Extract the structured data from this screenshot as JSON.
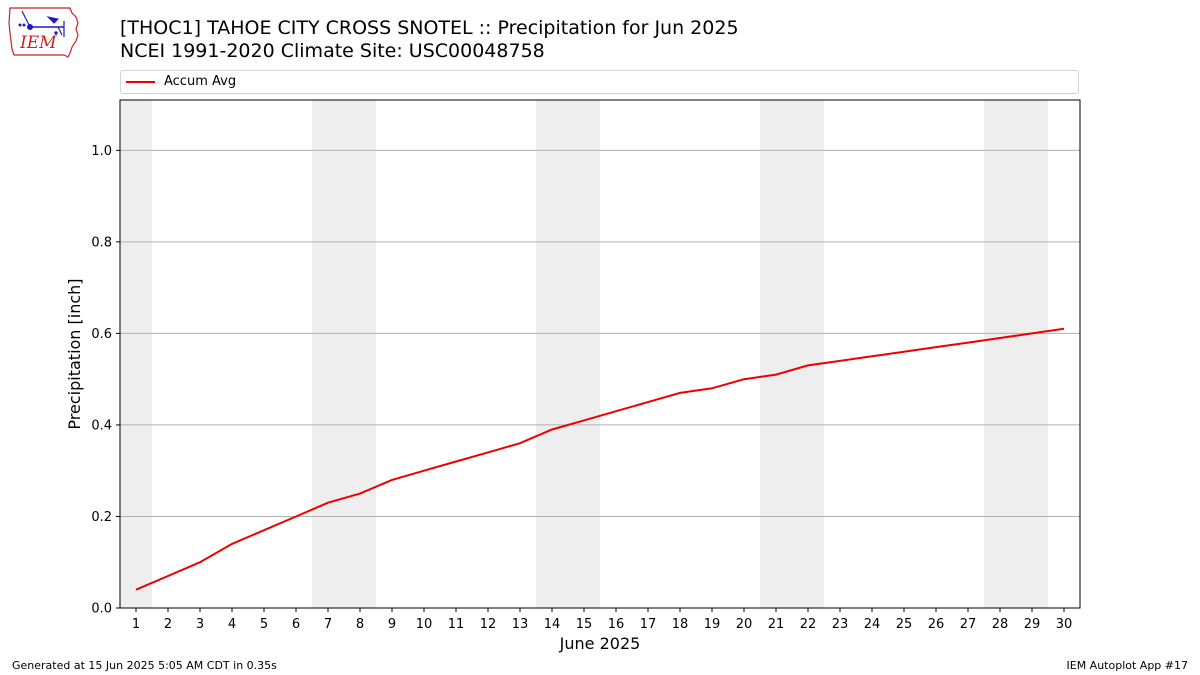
{
  "header": {
    "title_line1": "[THOC1] TAHOE CITY CROSS SNOTEL :: Precipitation for Jun 2025",
    "title_line2": "NCEI 1991-2020 Climate Site: USC00048758"
  },
  "logo": {
    "text": "IEM",
    "icon": "iem-iowa-logo-icon"
  },
  "footer": {
    "left": "Generated at 15 Jun 2025 5:05 AM CDT in 0.35s",
    "right": "IEM Autoplot App #17"
  },
  "colors": {
    "series": "#ee0000",
    "weekend_band": "#eeeeee",
    "grid": "#b0b0b0",
    "logo_red": "#cc2222",
    "logo_blue": "#1a1acc"
  },
  "chart_data": {
    "type": "line",
    "title": "[THOC1] TAHOE CITY CROSS SNOTEL :: Precipitation for Jun 2025",
    "subtitle": "NCEI 1991-2020 Climate Site: USC00048758",
    "xlabel": "June 2025",
    "ylabel": "Precipitation [inch]",
    "x": [
      1,
      2,
      3,
      4,
      5,
      6,
      7,
      8,
      9,
      10,
      11,
      12,
      13,
      14,
      15,
      16,
      17,
      18,
      19,
      20,
      21,
      22,
      23,
      24,
      25,
      26,
      27,
      28,
      29,
      30
    ],
    "series": [
      {
        "name": "Accum Avg",
        "color": "#ee0000",
        "values": [
          0.04,
          0.07,
          0.1,
          0.14,
          0.17,
          0.2,
          0.23,
          0.25,
          0.28,
          0.3,
          0.32,
          0.34,
          0.36,
          0.39,
          0.41,
          0.43,
          0.45,
          0.47,
          0.48,
          0.5,
          0.51,
          0.53,
          0.54,
          0.55,
          0.56,
          0.57,
          0.58,
          0.59,
          0.6,
          0.61
        ]
      }
    ],
    "xlim": [
      0.5,
      30.5
    ],
    "ylim": [
      0,
      1.11
    ],
    "yticks": [
      0.0,
      0.2,
      0.4,
      0.6,
      0.8,
      1.0
    ],
    "ytick_labels": [
      "0.0",
      "0.2",
      "0.4",
      "0.6",
      "0.8",
      "1.0"
    ],
    "xtick_labels": [
      "1",
      "2",
      "3",
      "4",
      "5",
      "6",
      "7",
      "8",
      "9",
      "10",
      "11",
      "12",
      "13",
      "14",
      "15",
      "16",
      "17",
      "18",
      "19",
      "20",
      "21",
      "22",
      "23",
      "24",
      "25",
      "26",
      "27",
      "28",
      "29",
      "30"
    ],
    "weekend_bands": [
      [
        0.5,
        1.5
      ],
      [
        6.5,
        8.5
      ],
      [
        13.5,
        15.5
      ],
      [
        20.5,
        22.5
      ],
      [
        27.5,
        29.5
      ]
    ],
    "grid": "horizontal",
    "legend": "top (above plot area)"
  }
}
